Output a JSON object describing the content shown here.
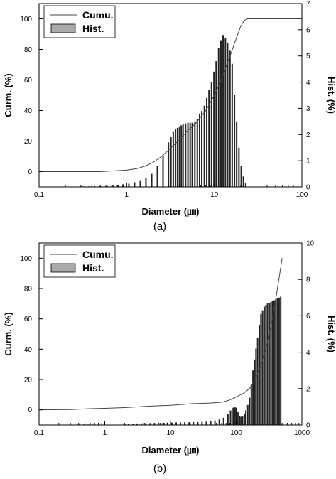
{
  "chart_data": [
    {
      "type": "bar",
      "panel_label": "(a)",
      "xlabel": "Diameter (㎛)",
      "ylabel_left": "Curm. (%)",
      "ylabel_right": "Hist. (%)",
      "x_scale": "log",
      "xlim": [
        0.1,
        100
      ],
      "x_ticks": [
        "0.1",
        "1",
        "10",
        "100"
      ],
      "ylim_left": [
        -10,
        110
      ],
      "y_ticks_left": [
        "0",
        "20",
        "40",
        "60",
        "80",
        "100"
      ],
      "ylim_right": [
        0,
        7
      ],
      "y_ticks_right": [
        "0",
        "1",
        "2",
        "3",
        "4",
        "5",
        "6",
        "7"
      ],
      "legend": {
        "placement": "top-left",
        "entries": [
          "Cumu.",
          "Hist."
        ]
      },
      "series": [
        {
          "name": "Cumu.",
          "kind": "line",
          "axis": "left",
          "x": [
            0.1,
            0.5,
            1,
            1.3,
            1.6,
            2,
            2.5,
            3,
            4,
            5,
            6,
            8,
            10,
            12,
            15,
            18,
            20,
            22,
            24,
            100
          ],
          "y": [
            0,
            0,
            1,
            2,
            3.5,
            6,
            10,
            14,
            21,
            27,
            31,
            40,
            50,
            60,
            75,
            88,
            95,
            99,
            100,
            100
          ]
        },
        {
          "name": "Hist.",
          "kind": "bar",
          "axis": "right",
          "x": [
            0.32,
            0.37,
            0.43,
            0.5,
            0.58,
            0.68,
            0.79,
            0.91,
            1.06,
            1.23,
            1.43,
            1.66,
            1.93,
            2.24,
            2.6,
            3.0,
            3.2,
            3.4,
            3.6,
            3.8,
            4.0,
            4.2,
            4.4,
            4.7,
            5.0,
            5.3,
            5.6,
            6.0,
            6.4,
            6.8,
            7.2,
            7.7,
            8.2,
            8.7,
            9.3,
            9.9,
            10.5,
            11.2,
            11.9,
            12.6,
            13.4,
            14.2,
            15.1,
            16.0,
            17.0,
            18.0,
            19.1,
            20.3,
            21.5,
            22.8
          ],
          "values": [
            0.02,
            0.02,
            0.03,
            0.03,
            0.04,
            0.05,
            0.07,
            0.1,
            0.12,
            0.18,
            0.25,
            0.35,
            0.5,
            0.8,
            1.2,
            1.7,
            1.9,
            2.1,
            2.2,
            2.25,
            2.3,
            2.35,
            2.4,
            2.42,
            2.45,
            2.45,
            2.45,
            2.5,
            2.6,
            2.8,
            2.9,
            3.1,
            3.4,
            3.7,
            4.0,
            4.4,
            4.8,
            5.3,
            5.6,
            5.8,
            5.7,
            5.5,
            5.2,
            4.7,
            3.5,
            2.5,
            1.5,
            0.8,
            0.4,
            0.15
          ]
        }
      ]
    },
    {
      "type": "bar",
      "panel_label": "(b)",
      "xlabel": "Diameter (㎛)",
      "ylabel_left": "Curm. (%)",
      "ylabel_right": "Hist. (%)",
      "x_scale": "log",
      "xlim": [
        0.1,
        1000
      ],
      "x_ticks": [
        "0.1",
        "1",
        "10",
        "100",
        "1000"
      ],
      "ylim_left": [
        -10,
        110
      ],
      "y_ticks_left": [
        "0",
        "20",
        "40",
        "60",
        "80",
        "100"
      ],
      "ylim_right": [
        0,
        10
      ],
      "y_ticks_right": [
        "0",
        "2",
        "4",
        "6",
        "8",
        "10"
      ],
      "legend": {
        "placement": "top-left",
        "entries": [
          "Cumu.",
          "Hist."
        ]
      },
      "series": [
        {
          "name": "Cumu.",
          "kind": "line",
          "axis": "left",
          "x": [
            0.1,
            0.3,
            0.6,
            1,
            2,
            5,
            10,
            20,
            40,
            60,
            80,
            100,
            130,
            160,
            200,
            250,
            300,
            350,
            400,
            450,
            500
          ],
          "y": [
            0,
            0.2,
            0.8,
            1,
            1.5,
            2.5,
            3,
            4,
            4.5,
            5,
            6.5,
            8.5,
            11,
            14,
            21,
            32,
            45,
            59,
            73,
            87,
            100
          ]
        },
        {
          "name": "Hist.",
          "kind": "bar",
          "axis": "right",
          "x": [
            0.4,
            0.48,
            0.56,
            0.66,
            2.0,
            2.3,
            2.7,
            3.1,
            3.6,
            4.2,
            4.9,
            5.7,
            6.6,
            7.7,
            9.0,
            10.5,
            12.2,
            14.2,
            16.5,
            19.2,
            22.3,
            26.0,
            30.2,
            35.1,
            40.9,
            47.5,
            55.3,
            64.3,
            74.8,
            82,
            90,
            95,
            100,
            106,
            112,
            118,
            125,
            133,
            140,
            150,
            160,
            170,
            180,
            190,
            200,
            212,
            225,
            238,
            252,
            267,
            283,
            300,
            318,
            337,
            357,
            378,
            400,
            424,
            450,
            476
          ],
          "values": [
            0.03,
            0.03,
            0.03,
            0.02,
            0.05,
            0.06,
            0.07,
            0.08,
            0.09,
            0.1,
            0.1,
            0.11,
            0.12,
            0.12,
            0.13,
            0.13,
            0.14,
            0.14,
            0.15,
            0.15,
            0.16,
            0.16,
            0.17,
            0.18,
            0.2,
            0.25,
            0.3,
            0.4,
            0.6,
            0.8,
            0.95,
            1.0,
            0.95,
            0.7,
            0.5,
            0.45,
            0.5,
            0.6,
            0.8,
            1.1,
            1.5,
            2.2,
            3.0,
            3.6,
            4.2,
            4.8,
            5.5,
            6.1,
            6.3,
            6.5,
            6.6,
            6.7,
            6.7,
            6.75,
            6.8,
            6.85,
            6.9,
            6.95,
            7.0,
            7.05
          ]
        }
      ]
    }
  ]
}
